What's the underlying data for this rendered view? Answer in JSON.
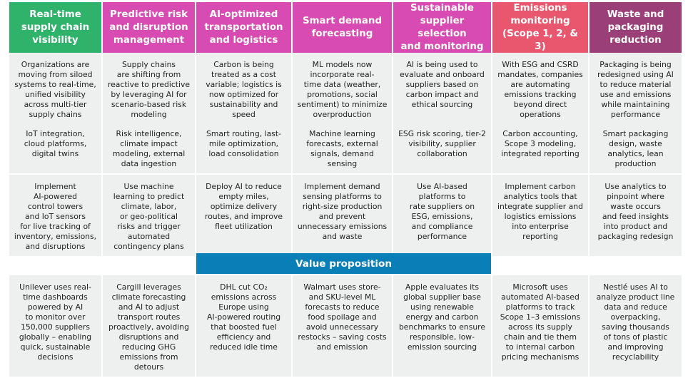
{
  "headers": [
    {
      "label": "Real-time\nsupply chain\nvisibility",
      "color": "#2fb36a"
    },
    {
      "label": "Predictive risk\nand disruption\nmanagement",
      "color": "#d84bb2"
    },
    {
      "label": "AI-optimized\ntransportation\nand logistics",
      "color": "#d84bb2"
    },
    {
      "label": "Smart demand\nforecasting",
      "color": "#d84bb2"
    },
    {
      "label": "Sustainable\nsupplier selection\nand monitoring",
      "color": "#d84bb2"
    },
    {
      "label": "Emissions\nmonitoring\n(Scope 1, 2, & 3)",
      "color": "#e8576e"
    },
    {
      "label": "Waste and\npackaging\nreduction",
      "color": "#9b3f78"
    }
  ],
  "trends": [
    "Organizations are\nmoving from siloed\nsystems to real-time,\nunified visibility\nacross multi-tier\nsupply chains",
    "Supply chains\nare shifting from\nreactive to predictive\nby leveraging AI for\nscenario-based risk\nmodeling",
    "Carbon is being\ntreated as a cost\nvariable; logistics is\nnow optimized for\nsustainability and\nspeed",
    "ML models now\nincorporate real-\ntime data (weather,\npromotions, social\nsentiment) to minimize\noverproduction",
    "AI is being used to\nevaluate and onboard\nsuppliers based on\ncarbon impact and\nethical sourcing",
    "With ESG and CSRD\nmandates, companies\nare automating\nemissions tracking\nbeyond direct\noperations",
    "Packaging is being\nredesigned using AI\nto reduce material\nuse and emissions\nwhile maintaining\nperformance"
  ],
  "technologies": [
    "IoT integration,\ncloud platforms,\ndigital twins",
    "Risk intelligence,\nclimate impact\nmodeling, external\ndata ingestion",
    "Smart routing, last-\nmile optimization,\nload consolidation",
    "Machine learning\nforecasts, external\nsignals, demand\nsensing",
    "ESG risk scoring, tier-2\nvisibility, supplier\ncollaboration",
    "Carbon accounting,\nScope 3 modeling,\nintegrated reporting",
    "Smart packaging\ndesign, waste\nanalytics, lean\nproduction"
  ],
  "actions": [
    "Implement\nAI-powered\ncontrol towers\nand IoT sensors\nfor live tracking of\ninventory, emissions,\nand disruptions",
    "Use machine\nlearning to predict\nclimate, labor,\nor geo-political\nrisks and trigger\nautomated\ncontingency plans",
    "Deploy AI to reduce\nempty miles,\noptimize delivery\nroutes, and improve\nfleet utilization",
    "Implement demand\nsensing platforms to\nright-size production\nand prevent\nunnecessary emissions\nand waste",
    "Use AI-based\nplatforms to\nrate suppliers on\nESG, emissions,\nand compliance\nperformance",
    "Implement carbon\nanalytics tools that\nintegrate supplier and\nlogistics emissions\ninto enterprise\nreporting",
    "Use analytics to\npinpoint where\nwaste occurs\nand feed insights\ninto product and\npackaging redesign"
  ],
  "value_proposition_label": "Value proposition",
  "examples": [
    "Unilever uses real-\ntime dashboards\npowered by AI\nto monitor over\n150,000 suppliers\nglobally – enabling\nquick, sustainable\ndecisions",
    "Cargill leverages\nclimate forecasting\nand AI to adjust\ntransport routes\nproactively, avoiding\ndisruptions and\nreducing GHG\nemissions from\ndetours",
    "DHL cut CO₂\nemissions across\nEurope using\nAI-powered routing\nthat boosted fuel\nefficiency and\nreduced idle time",
    "Walmart uses store-\nand SKU-level ML\nforecasts to reduce\nfood spoilage and\navoid unnecessary\nrestocks – saving costs\nand emission",
    "Apple evaluates its\nglobal supplier base\nusing renewable\nenergy and carbon\nbenchmarks to ensure\nresponsible, low-\nemission sourcing",
    "Microsoft uses\nautomated AI-based\nplatforms to track\nScope 1–3 emissions\nacross its supply\nchain and tie them\nto internal carbon\npricing mechanisms",
    "Nestlé uses AI to\nanalyze product line\ndata and reduce\noverpacking,\nsaving thousands\nof tons of plastic\nand improving\nrecyclability"
  ]
}
